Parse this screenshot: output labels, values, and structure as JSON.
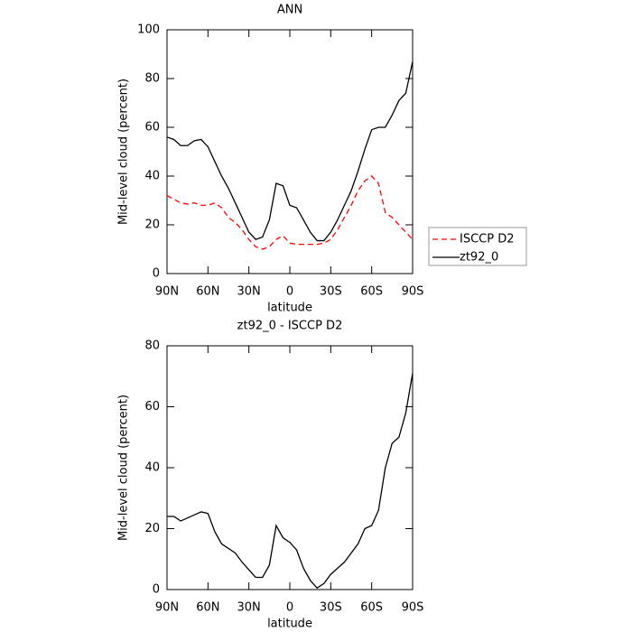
{
  "chart_data": [
    {
      "type": "line",
      "title": "ANN",
      "x_label": "latitude",
      "y_label": "Mid-level cloud (percent)",
      "x": [
        90,
        85,
        80,
        75,
        70,
        65,
        60,
        55,
        50,
        45,
        40,
        35,
        30,
        25,
        20,
        15,
        10,
        5,
        0,
        -5,
        -10,
        -15,
        -20,
        -25,
        -30,
        -35,
        -40,
        -45,
        -50,
        -55,
        -60,
        -65,
        -70,
        -75,
        -80,
        -85,
        -90
      ],
      "xlim": [
        90,
        -90
      ],
      "xticks": [
        {
          "value": 90,
          "label": "90N"
        },
        {
          "value": 60,
          "label": "60N"
        },
        {
          "value": 30,
          "label": "30N"
        },
        0,
        {
          "value": -30,
          "label": "30S"
        },
        {
          "value": -60,
          "label": "60S"
        },
        {
          "value": -90,
          "label": "90S"
        }
      ],
      "ylim": [
        0,
        100
      ],
      "yticks": [
        0,
        20,
        40,
        60,
        80,
        100
      ],
      "legend": "right",
      "series": [
        {
          "name": "ISCCP D2",
          "color": "#ff0000",
          "style": "dashed",
          "values": [
            32,
            30.5,
            29,
            28.5,
            29,
            28,
            28,
            29,
            27,
            23,
            21,
            18,
            14,
            11,
            10,
            11,
            14,
            15.5,
            12.5,
            12,
            12,
            12,
            12,
            12.5,
            14,
            18,
            23,
            28,
            34,
            38,
            40,
            37,
            25,
            23,
            20,
            17,
            14
          ]
        },
        {
          "name": "zt92_0",
          "color": "#000000",
          "style": "solid",
          "values": [
            56,
            55,
            52.5,
            52.5,
            54.5,
            55,
            52,
            46,
            40,
            35,
            29,
            23,
            17,
            14,
            15,
            22,
            37,
            36,
            28,
            27,
            22,
            17,
            13.5,
            13.5,
            17,
            22,
            28,
            34,
            42,
            51,
            59,
            60,
            60,
            65,
            71,
            74,
            87
          ]
        }
      ]
    },
    {
      "type": "line",
      "title": "zt92_0 - ISCCP D2",
      "x_label": "latitude",
      "y_label": "Mid-level cloud (percent)",
      "x": [
        90,
        85,
        80,
        75,
        70,
        65,
        60,
        55,
        50,
        45,
        40,
        35,
        30,
        25,
        20,
        15,
        10,
        5,
        0,
        -5,
        -10,
        -15,
        -20,
        -25,
        -30,
        -35,
        -40,
        -45,
        -50,
        -55,
        -60,
        -65,
        -70,
        -75,
        -80,
        -85,
        -90
      ],
      "xlim": [
        90,
        -90
      ],
      "xticks": [
        {
          "value": 90,
          "label": "90N"
        },
        {
          "value": 60,
          "label": "60N"
        },
        {
          "value": 30,
          "label": "30N"
        },
        0,
        {
          "value": -30,
          "label": "30S"
        },
        {
          "value": -60,
          "label": "60S"
        },
        {
          "value": -90,
          "label": "90S"
        }
      ],
      "ylim": [
        0,
        80
      ],
      "yticks": [
        0,
        20,
        40,
        60,
        80
      ],
      "color": "#000000",
      "style": "solid",
      "values": [
        24,
        24,
        22.5,
        23.5,
        24.5,
        25.5,
        25,
        19,
        15,
        13.5,
        12,
        9,
        6.5,
        4,
        4,
        8,
        21,
        17,
        15.5,
        13,
        7,
        3,
        0.5,
        2,
        5,
        7,
        9,
        12,
        15,
        20,
        21,
        26,
        40,
        48,
        50,
        58,
        71
      ]
    }
  ]
}
